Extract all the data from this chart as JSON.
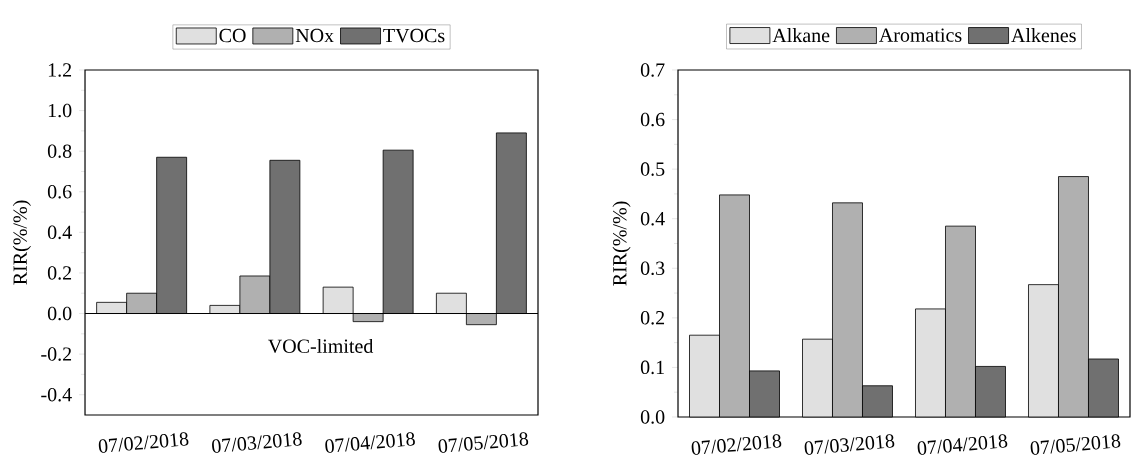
{
  "chart_data": [
    {
      "type": "bar",
      "categories": [
        "07/02/2018",
        "07/03/2018",
        "07/04/2018",
        "07/05/2018"
      ],
      "series": [
        {
          "name": "CO",
          "color": "#e0e0e0",
          "values": [
            0.055,
            0.04,
            0.13,
            0.1
          ]
        },
        {
          "name": "NOx",
          "color": "#b0b0b0",
          "values": [
            0.1,
            0.185,
            -0.04,
            -0.055
          ]
        },
        {
          "name": "TVOCs",
          "color": "#707070",
          "values": [
            0.77,
            0.755,
            0.805,
            0.89
          ]
        }
      ],
      "ylabel": "RIR(%/%)",
      "ylim": [
        -0.5,
        1.2
      ],
      "yticks": [
        {
          "value": -0.4,
          "label": "-0.4"
        },
        {
          "value": -0.2,
          "label": "-0.2"
        },
        {
          "value": 0,
          "label": "0.0"
        },
        {
          "value": 0.2,
          "label": "0.2"
        },
        {
          "value": 0.4,
          "label": "0.4"
        },
        {
          "value": 0.6,
          "label": "0.6"
        },
        {
          "value": 0.8,
          "label": "0.8"
        },
        {
          "value": 1.0,
          "label": "1.0"
        },
        {
          "value": 1.2,
          "label": "1.2"
        }
      ],
      "annotations": [
        "VOC-limited"
      ],
      "legend": "top"
    },
    {
      "type": "bar",
      "categories": [
        "07/02/2018",
        "07/03/2018",
        "07/04/2018",
        "07/05/2018"
      ],
      "series": [
        {
          "name": "Alkane",
          "color": "#e0e0e0",
          "values": [
            0.165,
            0.157,
            0.218,
            0.267
          ]
        },
        {
          "name": "Aromatics",
          "color": "#b0b0b0",
          "values": [
            0.448,
            0.432,
            0.385,
            0.485
          ]
        },
        {
          "name": "Alkenes",
          "color": "#707070",
          "values": [
            0.093,
            0.063,
            0.102,
            0.117
          ]
        }
      ],
      "ylabel": "RIR(%/%)",
      "ylim": [
        0,
        0.7
      ],
      "yticks": [
        {
          "value": 0,
          "label": "0.0"
        },
        {
          "value": 0.1,
          "label": "0.1"
        },
        {
          "value": 0.2,
          "label": "0.2"
        },
        {
          "value": 0.3,
          "label": "0.3"
        },
        {
          "value": 0.4,
          "label": "0.4"
        },
        {
          "value": 0.5,
          "label": "0.5"
        },
        {
          "value": 0.6,
          "label": "0.6"
        },
        {
          "value": 0.7,
          "label": "0.7"
        }
      ],
      "legend": "top"
    }
  ]
}
